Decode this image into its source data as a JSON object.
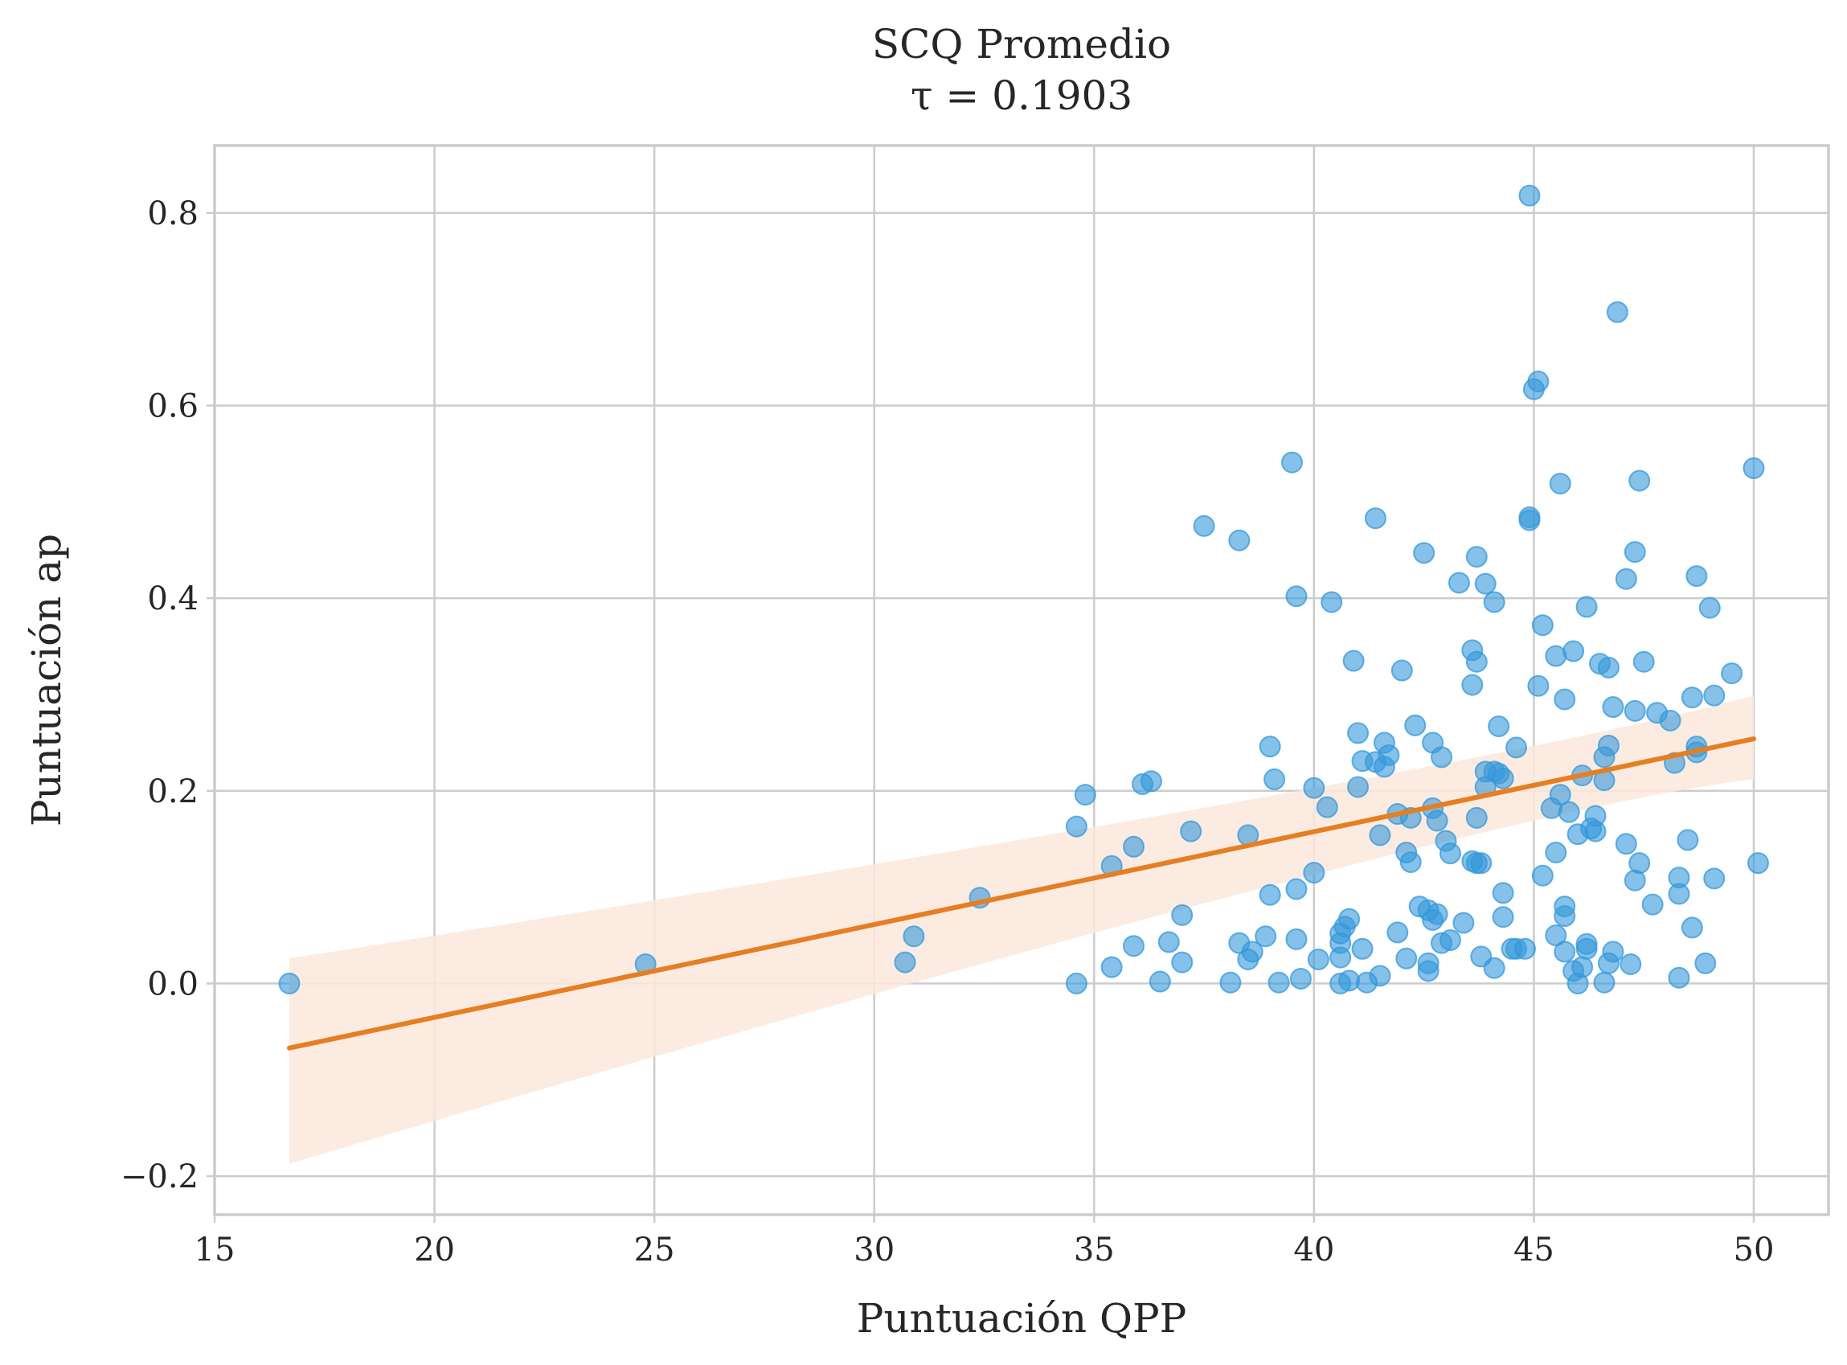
{
  "chart_data": {
    "type": "scatter",
    "title": "SCQ Promedio",
    "subtitle": "τ = 0.1903",
    "xlabel": "Puntuación QPP",
    "ylabel": "Puntuación ap",
    "xlim": [
      15,
      51.7
    ],
    "ylim": [
      -0.24,
      0.87
    ],
    "xticks": [
      15,
      20,
      25,
      30,
      35,
      40,
      45,
      50
    ],
    "yticks": [
      -0.2,
      0.0,
      0.2,
      0.4,
      0.6,
      0.8
    ],
    "xtick_labels": [
      "15",
      "20",
      "25",
      "30",
      "35",
      "40",
      "45",
      "50"
    ],
    "ytick_labels": [
      "−0.2",
      "0.0",
      "0.2",
      "0.4",
      "0.6",
      "0.8"
    ],
    "grid": true,
    "colors": {
      "points": "#3498db",
      "line": "#e67e22",
      "band": "#fbe8dc"
    },
    "points": [
      [
        16.7,
        0.0
      ],
      [
        24.8,
        0.02
      ],
      [
        30.7,
        0.022
      ],
      [
        30.9,
        0.049
      ],
      [
        32.4,
        0.089
      ],
      [
        34.6,
        0.0
      ],
      [
        34.6,
        0.163
      ],
      [
        34.8,
        0.196
      ],
      [
        35.4,
        0.017
      ],
      [
        35.4,
        0.122
      ],
      [
        35.9,
        0.039
      ],
      [
        35.9,
        0.142
      ],
      [
        36.1,
        0.207
      ],
      [
        36.3,
        0.21
      ],
      [
        36.5,
        0.002
      ],
      [
        36.7,
        0.043
      ],
      [
        37.0,
        0.022
      ],
      [
        37.0,
        0.071
      ],
      [
        37.2,
        0.158
      ],
      [
        37.5,
        0.475
      ],
      [
        38.1,
        0.001
      ],
      [
        38.3,
        0.042
      ],
      [
        38.3,
        0.46
      ],
      [
        38.5,
        0.025
      ],
      [
        38.5,
        0.154
      ],
      [
        38.6,
        0.033
      ],
      [
        38.9,
        0.049
      ],
      [
        39.0,
        0.092
      ],
      [
        39.0,
        0.246
      ],
      [
        39.1,
        0.212
      ],
      [
        39.2,
        0.001
      ],
      [
        39.5,
        0.541
      ],
      [
        39.6,
        0.402
      ],
      [
        39.6,
        0.098
      ],
      [
        39.6,
        0.046
      ],
      [
        39.7,
        0.005
      ],
      [
        40.0,
        0.203
      ],
      [
        40.0,
        0.115
      ],
      [
        40.1,
        0.025
      ],
      [
        40.3,
        0.183
      ],
      [
        40.4,
        0.396
      ],
      [
        40.6,
        0.0
      ],
      [
        40.6,
        0.027
      ],
      [
        40.6,
        0.042
      ],
      [
        40.6,
        0.052
      ],
      [
        40.7,
        0.059
      ],
      [
        40.8,
        0.003
      ],
      [
        40.8,
        0.067
      ],
      [
        40.9,
        0.335
      ],
      [
        41.0,
        0.26
      ],
      [
        41.0,
        0.204
      ],
      [
        41.1,
        0.231
      ],
      [
        41.1,
        0.036
      ],
      [
        41.2,
        0.001
      ],
      [
        41.4,
        0.483
      ],
      [
        41.4,
        0.23
      ],
      [
        41.5,
        0.154
      ],
      [
        41.5,
        0.008
      ],
      [
        41.6,
        0.25
      ],
      [
        41.6,
        0.225
      ],
      [
        41.7,
        0.237
      ],
      [
        41.9,
        0.176
      ],
      [
        41.9,
        0.053
      ],
      [
        42.0,
        0.325
      ],
      [
        42.1,
        0.026
      ],
      [
        42.1,
        0.136
      ],
      [
        42.2,
        0.126
      ],
      [
        42.2,
        0.172
      ],
      [
        42.3,
        0.268
      ],
      [
        42.4,
        0.08
      ],
      [
        42.5,
        0.447
      ],
      [
        42.6,
        0.076
      ],
      [
        42.6,
        0.021
      ],
      [
        42.6,
        0.013
      ],
      [
        42.7,
        0.25
      ],
      [
        42.7,
        0.182
      ],
      [
        42.7,
        0.066
      ],
      [
        42.8,
        0.169
      ],
      [
        42.8,
        0.072
      ],
      [
        42.9,
        0.235
      ],
      [
        42.9,
        0.042
      ],
      [
        43.0,
        0.148
      ],
      [
        43.1,
        0.135
      ],
      [
        43.1,
        0.045
      ],
      [
        43.3,
        0.416
      ],
      [
        43.4,
        0.063
      ],
      [
        43.6,
        0.31
      ],
      [
        43.6,
        0.346
      ],
      [
        43.6,
        0.127
      ],
      [
        43.7,
        0.334
      ],
      [
        43.7,
        0.443
      ],
      [
        43.7,
        0.172
      ],
      [
        43.7,
        0.125
      ],
      [
        43.8,
        0.125
      ],
      [
        43.8,
        0.028
      ],
      [
        43.9,
        0.415
      ],
      [
        43.9,
        0.22
      ],
      [
        43.9,
        0.204
      ],
      [
        44.1,
        0.396
      ],
      [
        44.1,
        0.22
      ],
      [
        44.1,
        0.016
      ],
      [
        44.2,
        0.267
      ],
      [
        44.2,
        0.218
      ],
      [
        44.3,
        0.213
      ],
      [
        44.3,
        0.069
      ],
      [
        44.3,
        0.094
      ],
      [
        44.5,
        0.036
      ],
      [
        44.6,
        0.036
      ],
      [
        44.6,
        0.245
      ],
      [
        44.8,
        0.036
      ],
      [
        44.9,
        0.818
      ],
      [
        44.9,
        0.484
      ],
      [
        44.9,
        0.481
      ],
      [
        45.0,
        0.617
      ],
      [
        45.1,
        0.625
      ],
      [
        45.1,
        0.309
      ],
      [
        45.2,
        0.112
      ],
      [
        45.2,
        0.372
      ],
      [
        45.4,
        0.182
      ],
      [
        45.5,
        0.34
      ],
      [
        45.5,
        0.136
      ],
      [
        45.5,
        0.05
      ],
      [
        45.6,
        0.196
      ],
      [
        45.6,
        0.519
      ],
      [
        45.7,
        0.295
      ],
      [
        45.7,
        0.08
      ],
      [
        45.7,
        0.07
      ],
      [
        45.7,
        0.033
      ],
      [
        45.8,
        0.178
      ],
      [
        45.9,
        0.345
      ],
      [
        45.9,
        0.013
      ],
      [
        46.0,
        0.0
      ],
      [
        46.0,
        0.155
      ],
      [
        46.1,
        0.017
      ],
      [
        46.1,
        0.216
      ],
      [
        46.2,
        0.391
      ],
      [
        46.2,
        0.036
      ],
      [
        46.2,
        0.041
      ],
      [
        46.3,
        0.161
      ],
      [
        46.4,
        0.174
      ],
      [
        46.4,
        0.158
      ],
      [
        46.5,
        0.332
      ],
      [
        46.6,
        0.235
      ],
      [
        46.6,
        0.211
      ],
      [
        46.6,
        0.001
      ],
      [
        46.7,
        0.247
      ],
      [
        46.7,
        0.328
      ],
      [
        46.7,
        0.021
      ],
      [
        46.8,
        0.287
      ],
      [
        46.8,
        0.033
      ],
      [
        46.9,
        0.697
      ],
      [
        47.1,
        0.42
      ],
      [
        47.1,
        0.145
      ],
      [
        47.2,
        0.02
      ],
      [
        47.3,
        0.283
      ],
      [
        47.3,
        0.448
      ],
      [
        47.3,
        0.107
      ],
      [
        47.4,
        0.522
      ],
      [
        47.4,
        0.125
      ],
      [
        47.5,
        0.334
      ],
      [
        47.7,
        0.082
      ],
      [
        47.8,
        0.281
      ],
      [
        48.1,
        0.273
      ],
      [
        48.2,
        0.229
      ],
      [
        48.3,
        0.11
      ],
      [
        48.3,
        0.093
      ],
      [
        48.3,
        0.006
      ],
      [
        48.5,
        0.149
      ],
      [
        48.6,
        0.058
      ],
      [
        48.6,
        0.297
      ],
      [
        48.7,
        0.423
      ],
      [
        48.7,
        0.246
      ],
      [
        48.7,
        0.24
      ],
      [
        48.9,
        0.021
      ],
      [
        49.0,
        0.39
      ],
      [
        49.1,
        0.299
      ],
      [
        49.1,
        0.109
      ],
      [
        49.5,
        0.322
      ],
      [
        50.0,
        0.535
      ],
      [
        50.1,
        0.125
      ]
    ],
    "regression": {
      "x": [
        16.7,
        50.0
      ],
      "y": [
        -0.067,
        0.254
      ],
      "ci_lower": [
        -0.187,
        0.212
      ],
      "ci_upper": [
        0.026,
        0.299
      ],
      "ci_at_mean": {
        "x": 43.8,
        "lower": 0.185,
        "upper": 0.215
      }
    }
  }
}
